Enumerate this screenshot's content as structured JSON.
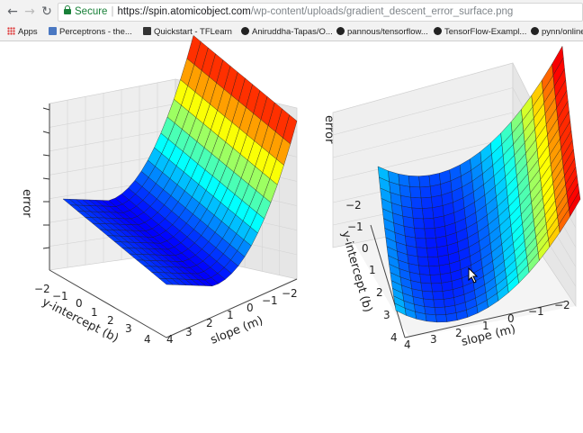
{
  "browser": {
    "secure_label": "Secure",
    "url_host": "https://spin.atomicobject.com",
    "url_path": "/wp-content/uploads/gradient_descent_error_surface.png"
  },
  "bookmarks": [
    {
      "label": "Apps",
      "icon": "apps-icon"
    },
    {
      "label": "Perceptrons - the...",
      "icon": "page-icon"
    },
    {
      "label": "Quickstart - TFLearn",
      "icon": "book-icon"
    },
    {
      "label": "Aniruddha-Tapas/O...",
      "icon": "github-icon"
    },
    {
      "label": "pannous/tensorflow...",
      "icon": "github-icon"
    },
    {
      "label": "TensorFlow-Exampl...",
      "icon": "github-icon"
    },
    {
      "label": "pynn/online",
      "icon": "github-icon"
    }
  ],
  "plot_left": {
    "zlabel": "error",
    "ylabel": "y-intercept (b)",
    "xlabel": "slope (m)",
    "y_ticks": [
      "−2",
      "−1",
      "0",
      "1",
      "2",
      "3",
      "4"
    ],
    "x_ticks": [
      "4",
      "3",
      "2",
      "1",
      "0",
      "−1",
      "−2"
    ]
  },
  "plot_right": {
    "zlabel": "error",
    "ylabel": "y-intercept (b)",
    "xlabel": "slope (m)",
    "y_ticks": [
      "−2",
      "−1",
      "0",
      "1",
      "2",
      "3",
      "4"
    ],
    "x_ticks": [
      "4",
      "3",
      "2",
      "1",
      "0",
      "−1",
      "−2"
    ]
  }
}
